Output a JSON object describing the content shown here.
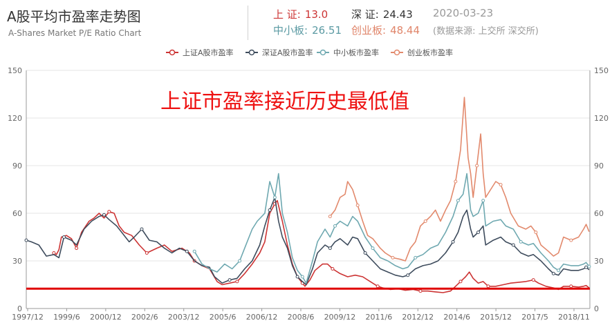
{
  "header": {
    "title": "A股平均市盈率走势图",
    "subtitle": "A-Shares Market P/E Ratio Chart",
    "date": "2020-03-23",
    "source": "(数据来源: 上交所 深交所)",
    "stats": [
      {
        "label": "上 证:",
        "value": "13.0"
      },
      {
        "label": "深 证:",
        "value": "24.43"
      },
      {
        "label": "中小板:",
        "value": "26.51"
      },
      {
        "label": "创业板:",
        "value": "48.44"
      }
    ]
  },
  "colors": {
    "shanghai": "#cc3333",
    "shenzhen": "#3d4b5c",
    "sme": "#6ea8b0",
    "chinext": "#e2896c",
    "reference_line": "#e00000",
    "annotation": "#ee1111",
    "grid": "#e6e6e6"
  },
  "chart_data": {
    "type": "line",
    "title": "",
    "xlabel": "",
    "ylabel": "",
    "ylim": [
      0,
      150
    ],
    "yticks": [
      0,
      30,
      60,
      90,
      120,
      150
    ],
    "xlim": [
      1997.8,
      2020.25
    ],
    "x_tick_labels": [
      "1997/12",
      "1999/6",
      "2000/12",
      "2002/6",
      "2003/12",
      "2005/6",
      "2006/12",
      "2008/6",
      "2009/12",
      "2011/6",
      "2012/12",
      "2014/6",
      "2015/12",
      "2017/5",
      "2018/11"
    ],
    "grid": true,
    "legend_position": "top-center",
    "annotation": "上证市盈率接近历史最低值",
    "reference_line_y": 12.5,
    "series": [
      {
        "name": "上证A股市盈率",
        "color": "#cc3333",
        "points": [
          [
            1998.9,
            35
          ],
          [
            1999.0,
            34
          ],
          [
            1999.1,
            37
          ],
          [
            1999.2,
            45
          ],
          [
            1999.4,
            46
          ],
          [
            1999.6,
            44
          ],
          [
            1999.8,
            38
          ],
          [
            2000.0,
            48
          ],
          [
            2000.3,
            55
          ],
          [
            2000.5,
            57
          ],
          [
            2000.7,
            60
          ],
          [
            2000.9,
            57
          ],
          [
            2001.1,
            61
          ],
          [
            2001.3,
            60
          ],
          [
            2001.5,
            52
          ],
          [
            2001.7,
            48
          ],
          [
            2002.0,
            46
          ],
          [
            2002.3,
            40
          ],
          [
            2002.6,
            35
          ],
          [
            2003.0,
            38
          ],
          [
            2003.3,
            40
          ],
          [
            2003.6,
            36
          ],
          [
            2004.0,
            38
          ],
          [
            2004.3,
            35
          ],
          [
            2004.5,
            30
          ],
          [
            2004.8,
            27
          ],
          [
            2005.1,
            25
          ],
          [
            2005.4,
            17
          ],
          [
            2005.6,
            15
          ],
          [
            2005.9,
            16
          ],
          [
            2006.2,
            17
          ],
          [
            2006.5,
            22
          ],
          [
            2006.8,
            28
          ],
          [
            2007.1,
            35
          ],
          [
            2007.3,
            42
          ],
          [
            2007.5,
            60
          ],
          [
            2007.7,
            66
          ],
          [
            2007.8,
            68
          ],
          [
            2008.0,
            55
          ],
          [
            2008.2,
            40
          ],
          [
            2008.4,
            28
          ],
          [
            2008.6,
            20
          ],
          [
            2008.8,
            16
          ],
          [
            2008.9,
            14
          ],
          [
            2009.1,
            18
          ],
          [
            2009.3,
            24
          ],
          [
            2009.6,
            28
          ],
          [
            2009.8,
            28
          ],
          [
            2010.0,
            25
          ],
          [
            2010.3,
            22
          ],
          [
            2010.6,
            20
          ],
          [
            2010.9,
            21
          ],
          [
            2011.2,
            20
          ],
          [
            2011.5,
            17
          ],
          [
            2011.8,
            14
          ],
          [
            2012.0,
            13
          ],
          [
            2012.3,
            12
          ],
          [
            2012.6,
            12.5
          ],
          [
            2012.9,
            11.5
          ],
          [
            2013.2,
            12
          ],
          [
            2013.5,
            11
          ],
          [
            2013.8,
            11
          ],
          [
            2014.1,
            10.5
          ],
          [
            2014.4,
            10
          ],
          [
            2014.7,
            11
          ],
          [
            2014.9,
            14
          ],
          [
            2015.1,
            17
          ],
          [
            2015.3,
            20
          ],
          [
            2015.45,
            23
          ],
          [
            2015.6,
            19
          ],
          [
            2015.8,
            16
          ],
          [
            2016.0,
            17
          ],
          [
            2016.2,
            14
          ],
          [
            2016.5,
            14
          ],
          [
            2016.8,
            15
          ],
          [
            2017.1,
            16
          ],
          [
            2017.4,
            16.5
          ],
          [
            2017.7,
            17
          ],
          [
            2018.0,
            18
          ],
          [
            2018.2,
            16
          ],
          [
            2018.5,
            14
          ],
          [
            2018.8,
            13
          ],
          [
            2019.0,
            12
          ],
          [
            2019.2,
            14
          ],
          [
            2019.5,
            14
          ],
          [
            2019.8,
            13.5
          ],
          [
            2020.0,
            14
          ],
          [
            2020.1,
            14.5
          ],
          [
            2020.22,
            13
          ]
        ]
      },
      {
        "name": "深证A股市盈率",
        "color": "#3d4b5c",
        "points": [
          [
            1997.8,
            43
          ],
          [
            1998.0,
            42
          ],
          [
            1998.3,
            40
          ],
          [
            1998.6,
            33
          ],
          [
            1998.9,
            34
          ],
          [
            1999.1,
            32
          ],
          [
            1999.3,
            45
          ],
          [
            1999.6,
            43
          ],
          [
            1999.8,
            40
          ],
          [
            2000.1,
            50
          ],
          [
            2000.4,
            55
          ],
          [
            2000.7,
            58
          ],
          [
            2000.9,
            59
          ],
          [
            2001.1,
            56
          ],
          [
            2001.4,
            52
          ],
          [
            2001.6,
            48
          ],
          [
            2001.9,
            42
          ],
          [
            2002.1,
            45
          ],
          [
            2002.4,
            50
          ],
          [
            2002.7,
            43
          ],
          [
            2003.0,
            42
          ],
          [
            2003.3,
            38
          ],
          [
            2003.6,
            35
          ],
          [
            2003.9,
            38
          ],
          [
            2004.2,
            36
          ],
          [
            2004.5,
            30
          ],
          [
            2004.8,
            27
          ],
          [
            2005.1,
            26
          ],
          [
            2005.3,
            20
          ],
          [
            2005.6,
            16
          ],
          [
            2005.9,
            18
          ],
          [
            2006.2,
            19
          ],
          [
            2006.5,
            25
          ],
          [
            2006.8,
            30
          ],
          [
            2007.1,
            40
          ],
          [
            2007.3,
            52
          ],
          [
            2007.5,
            62
          ],
          [
            2007.7,
            70
          ],
          [
            2007.85,
            55
          ],
          [
            2008.0,
            45
          ],
          [
            2008.2,
            38
          ],
          [
            2008.4,
            27
          ],
          [
            2008.6,
            20
          ],
          [
            2008.8,
            17
          ],
          [
            2008.95,
            15
          ],
          [
            2009.2,
            25
          ],
          [
            2009.4,
            35
          ],
          [
            2009.7,
            40
          ],
          [
            2009.9,
            38
          ],
          [
            2010.1,
            42
          ],
          [
            2010.3,
            44
          ],
          [
            2010.6,
            40
          ],
          [
            2010.8,
            45
          ],
          [
            2011.0,
            44
          ],
          [
            2011.3,
            35
          ],
          [
            2011.6,
            30
          ],
          [
            2011.9,
            25
          ],
          [
            2012.2,
            23
          ],
          [
            2012.5,
            21
          ],
          [
            2012.8,
            20
          ],
          [
            2013.0,
            21
          ],
          [
            2013.3,
            25
          ],
          [
            2013.6,
            27
          ],
          [
            2013.9,
            28
          ],
          [
            2014.2,
            30
          ],
          [
            2014.5,
            35
          ],
          [
            2014.8,
            42
          ],
          [
            2015.0,
            48
          ],
          [
            2015.2,
            58
          ],
          [
            2015.35,
            62
          ],
          [
            2015.5,
            50
          ],
          [
            2015.6,
            45
          ],
          [
            2015.8,
            48
          ],
          [
            2016.0,
            52
          ],
          [
            2016.1,
            40
          ],
          [
            2016.4,
            43
          ],
          [
            2016.7,
            45
          ],
          [
            2016.9,
            42
          ],
          [
            2017.2,
            40
          ],
          [
            2017.5,
            35
          ],
          [
            2017.8,
            33
          ],
          [
            2018.0,
            34
          ],
          [
            2018.3,
            30
          ],
          [
            2018.6,
            25
          ],
          [
            2018.8,
            22
          ],
          [
            2019.0,
            21
          ],
          [
            2019.2,
            25
          ],
          [
            2019.5,
            24
          ],
          [
            2019.8,
            24
          ],
          [
            2020.0,
            25
          ],
          [
            2020.1,
            26
          ],
          [
            2020.22,
            24.4
          ]
        ]
      },
      {
        "name": "中小板市盈率",
        "color": "#6ea8b0",
        "points": [
          [
            2004.5,
            36
          ],
          [
            2004.8,
            28
          ],
          [
            2005.1,
            25
          ],
          [
            2005.4,
            23
          ],
          [
            2005.7,
            28
          ],
          [
            2006.0,
            25
          ],
          [
            2006.3,
            30
          ],
          [
            2006.5,
            38
          ],
          [
            2006.8,
            50
          ],
          [
            2007.0,
            55
          ],
          [
            2007.3,
            60
          ],
          [
            2007.5,
            80
          ],
          [
            2007.7,
            70
          ],
          [
            2007.85,
            85
          ],
          [
            2008.0,
            60
          ],
          [
            2008.2,
            48
          ],
          [
            2008.4,
            32
          ],
          [
            2008.6,
            24
          ],
          [
            2008.8,
            20
          ],
          [
            2008.95,
            16
          ],
          [
            2009.2,
            30
          ],
          [
            2009.4,
            42
          ],
          [
            2009.7,
            50
          ],
          [
            2009.9,
            45
          ],
          [
            2010.1,
            52
          ],
          [
            2010.3,
            55
          ],
          [
            2010.6,
            52
          ],
          [
            2010.8,
            58
          ],
          [
            2011.0,
            55
          ],
          [
            2011.3,
            45
          ],
          [
            2011.6,
            38
          ],
          [
            2011.9,
            32
          ],
          [
            2012.2,
            30
          ],
          [
            2012.5,
            27
          ],
          [
            2012.8,
            25
          ],
          [
            2013.0,
            26
          ],
          [
            2013.3,
            32
          ],
          [
            2013.6,
            34
          ],
          [
            2013.9,
            38
          ],
          [
            2014.2,
            40
          ],
          [
            2014.5,
            48
          ],
          [
            2014.8,
            58
          ],
          [
            2015.0,
            68
          ],
          [
            2015.2,
            72
          ],
          [
            2015.35,
            85
          ],
          [
            2015.5,
            62
          ],
          [
            2015.6,
            58
          ],
          [
            2015.8,
            60
          ],
          [
            2016.0,
            68
          ],
          [
            2016.1,
            52
          ],
          [
            2016.4,
            55
          ],
          [
            2016.7,
            56
          ],
          [
            2016.9,
            52
          ],
          [
            2017.2,
            50
          ],
          [
            2017.5,
            42
          ],
          [
            2017.8,
            40
          ],
          [
            2018.0,
            41
          ],
          [
            2018.3,
            35
          ],
          [
            2018.6,
            30
          ],
          [
            2018.8,
            26
          ],
          [
            2019.0,
            24
          ],
          [
            2019.2,
            28
          ],
          [
            2019.5,
            27
          ],
          [
            2019.8,
            27
          ],
          [
            2020.0,
            28
          ],
          [
            2020.1,
            29
          ],
          [
            2020.22,
            26.5
          ]
        ]
      },
      {
        "name": "创业板市盈率",
        "color": "#e2896c",
        "points": [
          [
            2009.9,
            58
          ],
          [
            2010.1,
            62
          ],
          [
            2010.3,
            70
          ],
          [
            2010.5,
            72
          ],
          [
            2010.6,
            80
          ],
          [
            2010.8,
            75
          ],
          [
            2011.0,
            65
          ],
          [
            2011.2,
            55
          ],
          [
            2011.4,
            46
          ],
          [
            2011.6,
            44
          ],
          [
            2011.9,
            38
          ],
          [
            2012.1,
            35
          ],
          [
            2012.4,
            32
          ],
          [
            2012.7,
            31
          ],
          [
            2012.9,
            30
          ],
          [
            2013.1,
            38
          ],
          [
            2013.3,
            42
          ],
          [
            2013.5,
            52
          ],
          [
            2013.7,
            55
          ],
          [
            2013.9,
            58
          ],
          [
            2014.1,
            62
          ],
          [
            2014.3,
            55
          ],
          [
            2014.5,
            62
          ],
          [
            2014.7,
            68
          ],
          [
            2014.9,
            80
          ],
          [
            2015.1,
            100
          ],
          [
            2015.25,
            133
          ],
          [
            2015.4,
            95
          ],
          [
            2015.5,
            85
          ],
          [
            2015.6,
            70
          ],
          [
            2015.75,
            90
          ],
          [
            2015.9,
            110
          ],
          [
            2016.0,
            85
          ],
          [
            2016.1,
            70
          ],
          [
            2016.3,
            75
          ],
          [
            2016.5,
            80
          ],
          [
            2016.7,
            78
          ],
          [
            2016.9,
            70
          ],
          [
            2017.1,
            60
          ],
          [
            2017.4,
            52
          ],
          [
            2017.7,
            50
          ],
          [
            2017.9,
            52
          ],
          [
            2018.1,
            48
          ],
          [
            2018.3,
            40
          ],
          [
            2018.6,
            36
          ],
          [
            2018.8,
            33
          ],
          [
            2019.0,
            35
          ],
          [
            2019.2,
            45
          ],
          [
            2019.5,
            43
          ],
          [
            2019.8,
            45
          ],
          [
            2020.0,
            50
          ],
          [
            2020.1,
            53
          ],
          [
            2020.22,
            48.4
          ]
        ]
      }
    ]
  }
}
